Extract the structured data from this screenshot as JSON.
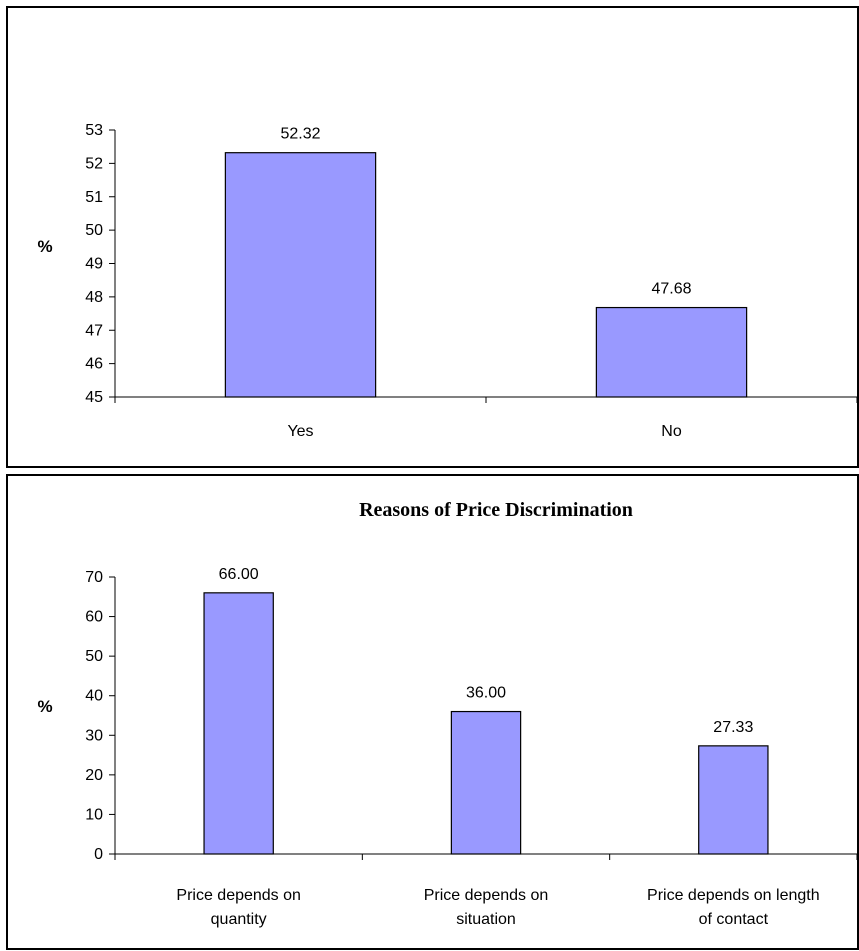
{
  "chart_data": [
    {
      "type": "bar",
      "title": "",
      "xlabel": "",
      "ylabel": "%",
      "categories": [
        [
          "Yes"
        ],
        [
          "No"
        ]
      ],
      "values": [
        52.32,
        47.68
      ],
      "data_labels": [
        "52.32",
        "47.68"
      ],
      "ylim": [
        45,
        53
      ],
      "yticks": [
        45,
        46,
        47,
        48,
        49,
        50,
        51,
        52,
        53
      ],
      "bar_color": "#9999ff",
      "grid": false,
      "legend": "none"
    },
    {
      "type": "bar",
      "title": "Reasons of Price Discrimination",
      "xlabel": "",
      "ylabel": "%",
      "categories": [
        [
          "Price depends on",
          "quantity"
        ],
        [
          "Price depends on",
          "situation"
        ],
        [
          "Price depends on length",
          "of contact"
        ]
      ],
      "values": [
        66.0,
        36.0,
        27.33
      ],
      "data_labels": [
        "66.00",
        "36.00",
        "27.33"
      ],
      "ylim": [
        0,
        70
      ],
      "yticks": [
        0,
        10,
        20,
        30,
        40,
        50,
        60,
        70
      ],
      "bar_color": "#9999ff",
      "grid": false,
      "legend": "none"
    }
  ]
}
